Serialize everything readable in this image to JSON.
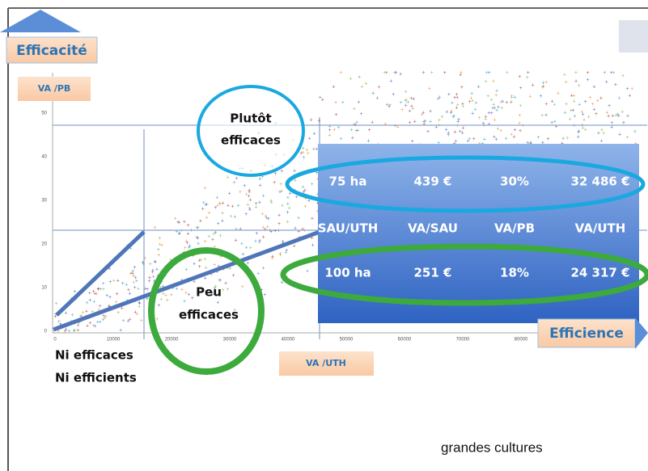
{
  "slide": {
    "axis_labels": {
      "y": "VA /PB",
      "x": "VA /UTH",
      "y_title": "Efficacité",
      "x_title": "Efficience"
    },
    "y_ticks": [
      "0",
      "10",
      "20",
      "30",
      "40",
      "50"
    ],
    "x_ticks": [
      "0",
      "10000",
      "20000",
      "30000",
      "40000",
      "50000",
      "60000",
      "70000",
      "80000"
    ],
    "zones": {
      "top": [
        "Plutôt",
        "efficaces"
      ],
      "low": [
        "Peu",
        "efficaces"
      ],
      "none": [
        "Ni efficaces",
        "Ni efficients"
      ]
    },
    "table": {
      "rows": [
        [
          "75 ha",
          "439 €",
          "30%",
          "32 486 €"
        ],
        [
          "SAU/UTH",
          "VA/SAU",
          "VA/PB",
          "VA/UTH"
        ],
        [
          "100 ha",
          "251 €",
          "18%",
          "24 317 €"
        ]
      ]
    },
    "caption": "grandes cultures"
  }
}
